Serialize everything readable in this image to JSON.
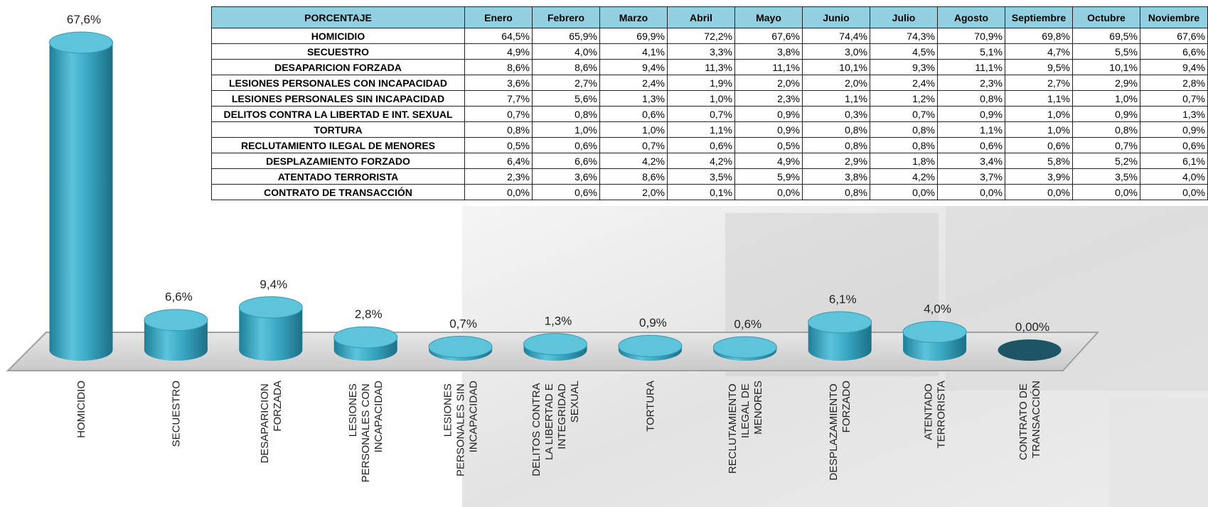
{
  "chart_data": {
    "type": "bar",
    "categories": [
      "HOMICIDIO",
      "SECUESTRO",
      "DESAPARICION FORZADA",
      "LESIONES PERSONALES CON INCAPACIDAD",
      "LESIONES PERSONALES SIN INCAPACIDAD",
      "DELITOS CONTRA LA LIBERTAD E INTEGRIDAD SEXUAL",
      "TORTURA",
      "RECLUTAMIENTO ILEGAL DE MENORES",
      "DESPLAZAMIENTO FORZADO",
      "ATENTADO TERRORISTA",
      "CONTRATO DE TRANSACCIÓN"
    ],
    "values": [
      67.6,
      6.6,
      9.4,
      2.8,
      0.7,
      1.3,
      0.9,
      0.6,
      6.1,
      4.0,
      0
    ],
    "value_labels": [
      "67,6%",
      "6,6%",
      "9,4%",
      "2,8%",
      "0,7%",
      "1,3%",
      "0,9%",
      "0,6%",
      "6,1%",
      "4,0%",
      "0,00%"
    ],
    "color": "#3aa9c5"
  },
  "table": {
    "header": [
      "PORCENTAJE",
      "Enero",
      "Febrero",
      "Marzo",
      "Abril",
      "Mayo",
      "Junio",
      "Julio",
      "Agosto",
      "Septiembre",
      "Octubre",
      "Noviembre"
    ],
    "rows": [
      [
        "HOMICIDIO",
        "64,5%",
        "65,9%",
        "69,9%",
        "72,2%",
        "67,6%",
        "74,4%",
        "74,3%",
        "70,9%",
        "69,8%",
        "69,5%",
        "67,6%"
      ],
      [
        "SECUESTRO",
        "4,9%",
        "4,0%",
        "4,1%",
        "3,3%",
        "3,8%",
        "3,0%",
        "4,5%",
        "5,1%",
        "4,7%",
        "5,5%",
        "6,6%"
      ],
      [
        "DESAPARICION FORZADA",
        "8,6%",
        "8,6%",
        "9,4%",
        "11,3%",
        "11,1%",
        "10,1%",
        "9,3%",
        "11,1%",
        "9,5%",
        "10,1%",
        "9,4%"
      ],
      [
        "LESIONES PERSONALES CON INCAPACIDAD",
        "3,6%",
        "2,7%",
        "2,4%",
        "1,9%",
        "2,0%",
        "2,0%",
        "2,4%",
        "2,3%",
        "2,7%",
        "2,9%",
        "2,8%"
      ],
      [
        "LESIONES PERSONALES SIN INCAPACIDAD",
        "7,7%",
        "5,6%",
        "1,3%",
        "1,0%",
        "2,3%",
        "1,1%",
        "1,2%",
        "0,8%",
        "1,1%",
        "1,0%",
        "0,7%"
      ],
      [
        "DELITOS CONTRA LA LIBERTAD E INT. SEXUAL",
        "0,7%",
        "0,8%",
        "0,6%",
        "0,7%",
        "0,9%",
        "0,3%",
        "0,7%",
        "0,9%",
        "1,0%",
        "0,9%",
        "1,3%"
      ],
      [
        "TORTURA",
        "0,8%",
        "1,0%",
        "1,0%",
        "1,1%",
        "0,9%",
        "0,8%",
        "0,8%",
        "1,1%",
        "1,0%",
        "0,8%",
        "0,9%"
      ],
      [
        "RECLUTAMIENTO ILEGAL DE MENORES",
        "0,5%",
        "0,6%",
        "0,7%",
        "0,6%",
        "0,5%",
        "0,8%",
        "0,8%",
        "0,6%",
        "0,6%",
        "0,7%",
        "0,6%"
      ],
      [
        "DESPLAZAMIENTO FORZADO",
        "6,4%",
        "6,6%",
        "4,2%",
        "4,2%",
        "4,9%",
        "2,9%",
        "1,8%",
        "3,4%",
        "5,8%",
        "5,2%",
        "6,1%"
      ],
      [
        "ATENTADO TERRORISTA",
        "2,3%",
        "3,6%",
        "8,6%",
        "3,5%",
        "5,9%",
        "3,8%",
        "4,2%",
        "3,7%",
        "3,9%",
        "3,5%",
        "4,0%"
      ],
      [
        "CONTRATO DE TRANSACCIÓN",
        "0,0%",
        "0,6%",
        "2,0%",
        "0,1%",
        "0,0%",
        "0,8%",
        "0,0%",
        "0,0%",
        "0,0%",
        "0,0%",
        "0,0%"
      ]
    ]
  }
}
